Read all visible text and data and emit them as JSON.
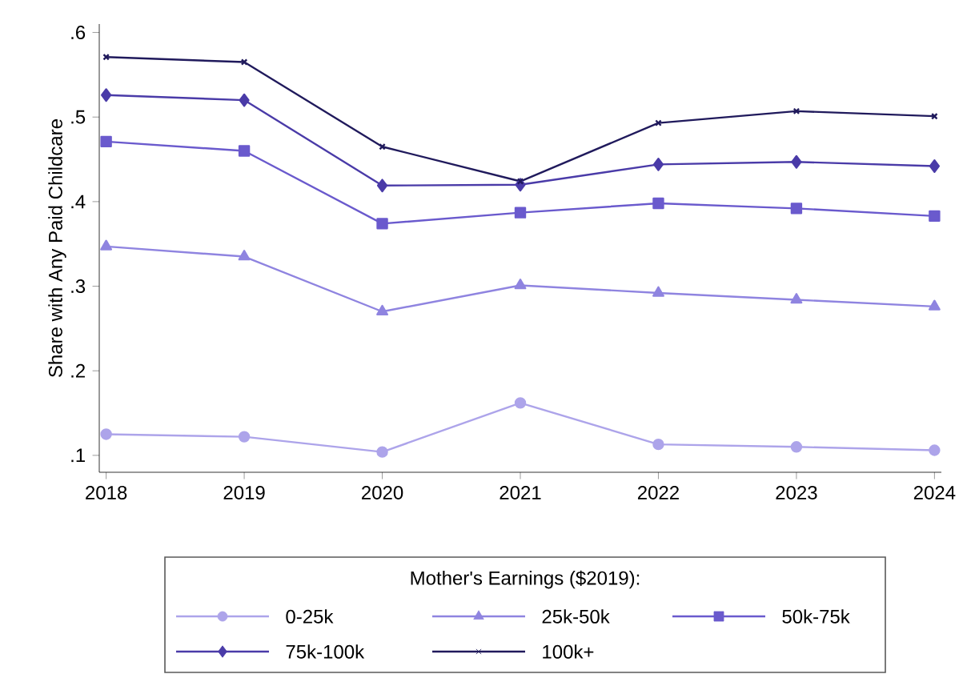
{
  "chart_data": {
    "type": "line",
    "ylabel": "Share with Any Paid Childcare",
    "legend_title": "Mother's Earnings ($2019):",
    "legend": "bottom",
    "grid": false,
    "x": [
      2018,
      2019,
      2020,
      2021,
      2022,
      2023,
      2024
    ],
    "xlim": [
      2017.95,
      2024.05
    ],
    "xticks": [
      2018,
      2019,
      2020,
      2021,
      2022,
      2023,
      2024
    ],
    "ylim": [
      0.08,
      0.61
    ],
    "yticks": [
      {
        "value": 0.1,
        "label": ".1"
      },
      {
        "value": 0.2,
        "label": ".2"
      },
      {
        "value": 0.3,
        "label": ".3"
      },
      {
        "value": 0.4,
        "label": ".4"
      },
      {
        "value": 0.5,
        "label": ".5"
      },
      {
        "value": 0.6,
        "label": ".6"
      }
    ],
    "series": [
      {
        "name": "0-25k",
        "color": "#ada4ea",
        "marker": "circle",
        "values": [
          0.125,
          0.122,
          0.104,
          0.162,
          0.113,
          0.11,
          0.106
        ]
      },
      {
        "name": "25k-50k",
        "color": "#8f84e0",
        "marker": "triangle",
        "values": [
          0.347,
          0.335,
          0.27,
          0.301,
          0.292,
          0.284,
          0.276
        ]
      },
      {
        "name": "50k-75k",
        "color": "#6a5acd",
        "marker": "square",
        "values": [
          0.471,
          0.46,
          0.374,
          0.387,
          0.398,
          0.392,
          0.383
        ]
      },
      {
        "name": "75k-100k",
        "color": "#4a3ba8",
        "marker": "diamond",
        "values": [
          0.526,
          0.52,
          0.419,
          0.42,
          0.444,
          0.447,
          0.442
        ]
      },
      {
        "name": "100k+",
        "color": "#201a5c",
        "marker": "cross",
        "values": [
          0.571,
          0.565,
          0.465,
          0.424,
          0.493,
          0.507,
          0.501
        ]
      }
    ]
  }
}
